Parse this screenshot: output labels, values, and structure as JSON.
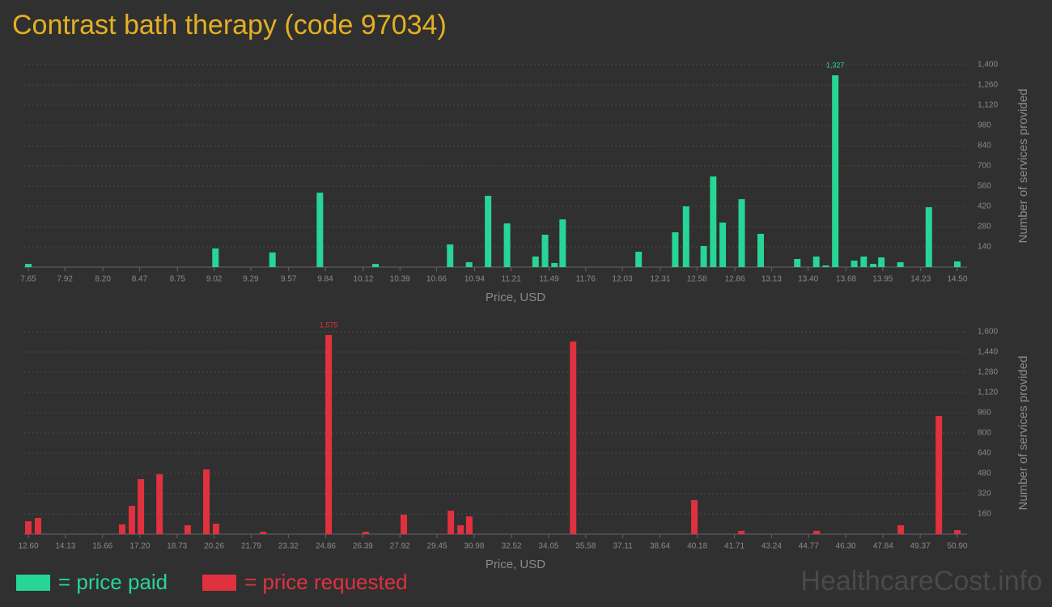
{
  "page": {
    "title": "Contrast bath therapy (code 97034)",
    "watermark": "HealthcareCost.info"
  },
  "chart_data": [
    {
      "type": "bar",
      "xlabel": "Price, USD",
      "ylabel": "Number of services provided",
      "grid": true,
      "x": [
        7.65,
        9.03,
        9.45,
        9.8,
        10.21,
        10.76,
        10.9,
        11.04,
        11.18,
        11.39,
        11.46,
        11.53,
        11.59,
        12.15,
        12.42,
        12.5,
        12.63,
        12.7,
        12.77,
        12.91,
        13.05,
        13.32,
        13.46,
        13.53,
        13.6,
        13.74,
        13.81,
        13.88,
        13.94,
        14.08,
        14.29,
        14.5
      ],
      "series": [
        {
          "name": "= price paid",
          "color": "#27d596",
          "values": [
            22,
            129,
            101,
            515,
            22,
            157,
            34,
            493,
            302,
            73,
            224,
            28,
            330,
            106,
            241,
            420,
            146,
            627,
            308,
            470,
            230,
            56,
            73,
            11,
            1327,
            45,
            73,
            22,
            67,
            34,
            414,
            39
          ],
          "value_labels": [
            null,
            null,
            null,
            null,
            null,
            null,
            null,
            null,
            null,
            null,
            null,
            null,
            null,
            null,
            null,
            null,
            null,
            null,
            null,
            null,
            null,
            null,
            null,
            null,
            "1,327",
            null,
            null,
            null,
            null,
            null,
            null,
            null
          ]
        }
      ],
      "xlim": [
        7.65,
        14.5
      ],
      "xticks": [
        7.65,
        7.92,
        {
          "value": 8.2,
          "label": "8.20"
        },
        8.47,
        8.75,
        9.02,
        9.29,
        9.57,
        9.84,
        10.12,
        10.39,
        10.66,
        10.94,
        11.21,
        11.49,
        11.76,
        12.03,
        12.31,
        12.58,
        12.86,
        13.13,
        {
          "value": 13.4,
          "label": "13.40"
        },
        13.68,
        13.95,
        14.23,
        {
          "value": 14.5,
          "label": "14.50"
        }
      ],
      "ylim": [
        0,
        1400
      ],
      "yticks": [
        140,
        280,
        420,
        560,
        700,
        840,
        980,
        {
          "value": 1120,
          "label": "1,120"
        },
        {
          "value": 1260,
          "label": "1,260"
        },
        {
          "value": 1400,
          "label": "1,400"
        }
      ]
    },
    {
      "type": "bar",
      "xlabel": "Price, USD",
      "ylabel": "Number of services provided",
      "grid": true,
      "x": [
        12.6,
        13.0,
        16.47,
        16.87,
        17.24,
        18.01,
        19.17,
        19.94,
        20.34,
        22.28,
        24.98,
        26.51,
        28.08,
        30.02,
        30.42,
        30.78,
        35.06,
        40.06,
        42.0,
        45.1,
        48.57,
        50.14,
        50.9
      ],
      "series": [
        {
          "name": "= price requested",
          "color": "#e0313f",
          "values": [
            102,
            128,
            77,
            224,
            435,
            474,
            70,
            512,
            83,
            19,
            1575,
            19,
            154,
            186,
            70,
            141,
            1523,
            269,
            26,
            26,
            70,
            934,
            32
          ],
          "value_labels": [
            null,
            null,
            null,
            null,
            null,
            null,
            null,
            null,
            null,
            null,
            "1,575",
            null,
            null,
            null,
            null,
            null,
            null,
            null,
            null,
            null,
            null,
            null,
            null
          ]
        }
      ],
      "xlim": [
        12.6,
        50.9
      ],
      "xticks": [
        {
          "value": 12.6,
          "label": "12.60"
        },
        14.13,
        15.66,
        {
          "value": 17.2,
          "label": "17.20"
        },
        18.73,
        20.26,
        21.79,
        23.32,
        24.86,
        26.39,
        27.92,
        29.45,
        30.98,
        32.52,
        34.05,
        35.58,
        37.11,
        38.64,
        40.18,
        41.71,
        43.24,
        44.77,
        {
          "value": 46.3,
          "label": "46.30"
        },
        47.84,
        49.37,
        {
          "value": 50.9,
          "label": "50.90"
        }
      ],
      "ylim": [
        0,
        1600
      ],
      "yticks": [
        160,
        320,
        480,
        640,
        800,
        960,
        {
          "value": 1120,
          "label": "1,120"
        },
        {
          "value": 1280,
          "label": "1,280"
        },
        {
          "value": 1440,
          "label": "1,440"
        },
        {
          "value": 1600,
          "label": "1,600"
        }
      ]
    }
  ]
}
